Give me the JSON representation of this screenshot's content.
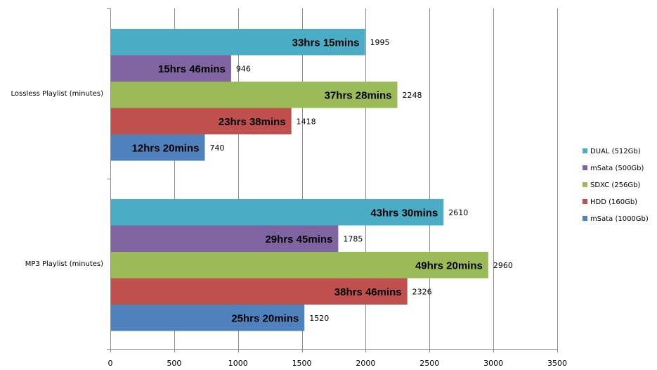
{
  "chart_data": {
    "type": "bar",
    "orientation": "horizontal",
    "title": "",
    "xlabel": "",
    "ylabel": "",
    "xlim": [
      0,
      3500
    ],
    "x_ticks": [
      0,
      500,
      1000,
      1500,
      2000,
      2500,
      3000,
      3500
    ],
    "grid": true,
    "legend_position": "right",
    "categories": [
      "Lossless Playlist (minutes)",
      "MP3 Playlist (minutes)"
    ],
    "series": [
      {
        "name": "DUAL (512Gb)",
        "color": "#4BACC6",
        "values": [
          1995,
          2610
        ],
        "labels": [
          "33hrs 15mins",
          "43hrs 30mins"
        ]
      },
      {
        "name": "mSata (500Gb)",
        "color": "#8064A2",
        "values": [
          946,
          1785
        ],
        "labels": [
          "15hrs 46mins",
          "29hrs 45mins"
        ]
      },
      {
        "name": "SDXC (256Gb)",
        "color": "#9BBB59",
        "values": [
          2248,
          2960
        ],
        "labels": [
          "37hrs 28mins",
          "49hrs 20mins"
        ]
      },
      {
        "name": "HDD (160Gb)",
        "color": "#C0504D",
        "values": [
          1418,
          2326
        ],
        "labels": [
          "23hrs 38mins",
          "38hrs 46mins"
        ]
      },
      {
        "name": "mSata (1000Gb)",
        "color": "#4F81BD",
        "values": [
          740,
          1520
        ],
        "labels": [
          "12hrs 20mins",
          "25hrs 20mins"
        ]
      }
    ]
  }
}
